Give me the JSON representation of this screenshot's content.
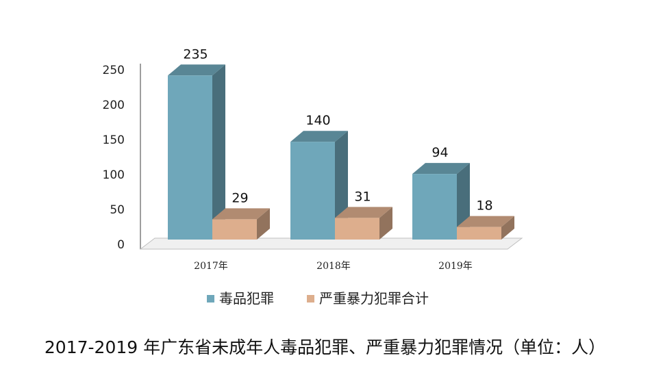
{
  "caption": "2017-2019 年广东省未成年人毒品犯罪、严重暴力犯罪情况（单位：人）",
  "chart_data": {
    "type": "bar",
    "categories": [
      "2017年",
      "2018年",
      "2019年"
    ],
    "series": [
      {
        "name": "毒品犯罪",
        "values": [
          235,
          140,
          94
        ],
        "color": "#6FA7BA"
      },
      {
        "name": "严重暴力犯罪合计",
        "values": [
          29,
          31,
          18
        ],
        "color": "#DDAE8D"
      }
    ],
    "yticks": [
      0,
      50,
      100,
      150,
      200,
      250
    ],
    "ylim": [
      0,
      250
    ],
    "legend": "bottom"
  }
}
